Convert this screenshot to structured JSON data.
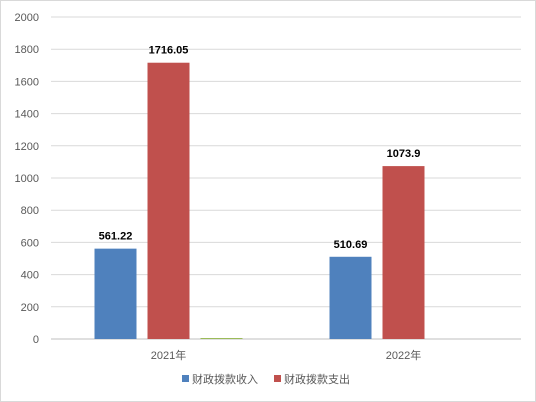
{
  "chart_data": {
    "type": "bar",
    "categories": [
      "2021年",
      "2022年"
    ],
    "series": [
      {
        "name": "财政拨款收入",
        "color": "#4f81bd",
        "values": [
          561.22,
          510.69
        ]
      },
      {
        "name": "财政拨款支出",
        "color": "#c0504d",
        "values": [
          1716.05,
          1073.9
        ]
      },
      {
        "color": "#9bbb59",
        "values": [
          6,
          null
        ]
      }
    ],
    "data_labels": [
      [
        "561.22",
        "510.69"
      ],
      [
        "1716.05",
        "1073.9"
      ],
      [
        null,
        null
      ]
    ],
    "ylim": [
      0,
      2000
    ],
    "yticks": [
      0,
      200,
      400,
      600,
      800,
      1000,
      1200,
      1400,
      1600,
      1800,
      2000
    ],
    "grid": true,
    "legend_position": "bottom",
    "title": "",
    "xlabel": "",
    "ylabel": ""
  }
}
